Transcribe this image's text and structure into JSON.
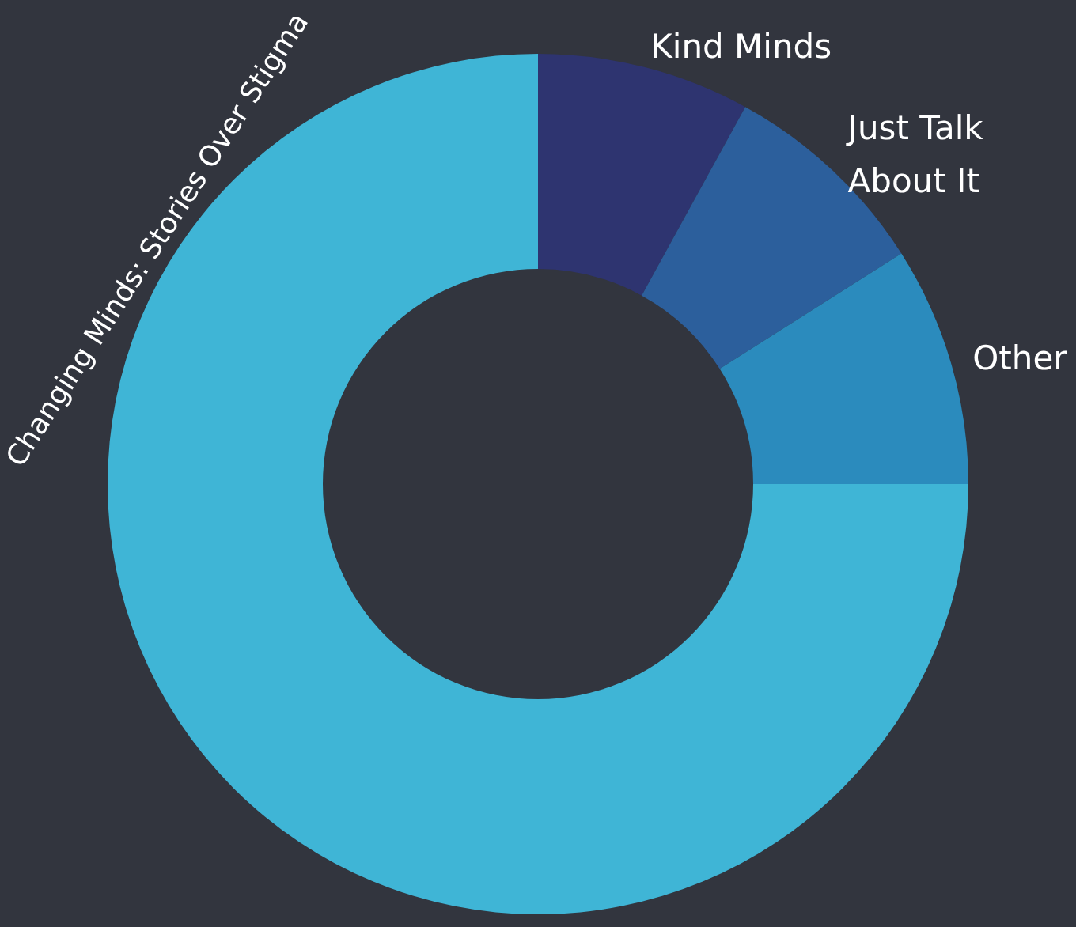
{
  "chart_data": {
    "type": "donut",
    "categories": [
      "Kind Minds",
      "Just Talk About It",
      "Other",
      "Changing Minds: Stories Over Stigma"
    ],
    "values": [
      8,
      8,
      9,
      75
    ],
    "colors": [
      "#2e3470",
      "#2c5f9c",
      "#2b8bbd",
      "#3fb5d6"
    ]
  }
}
